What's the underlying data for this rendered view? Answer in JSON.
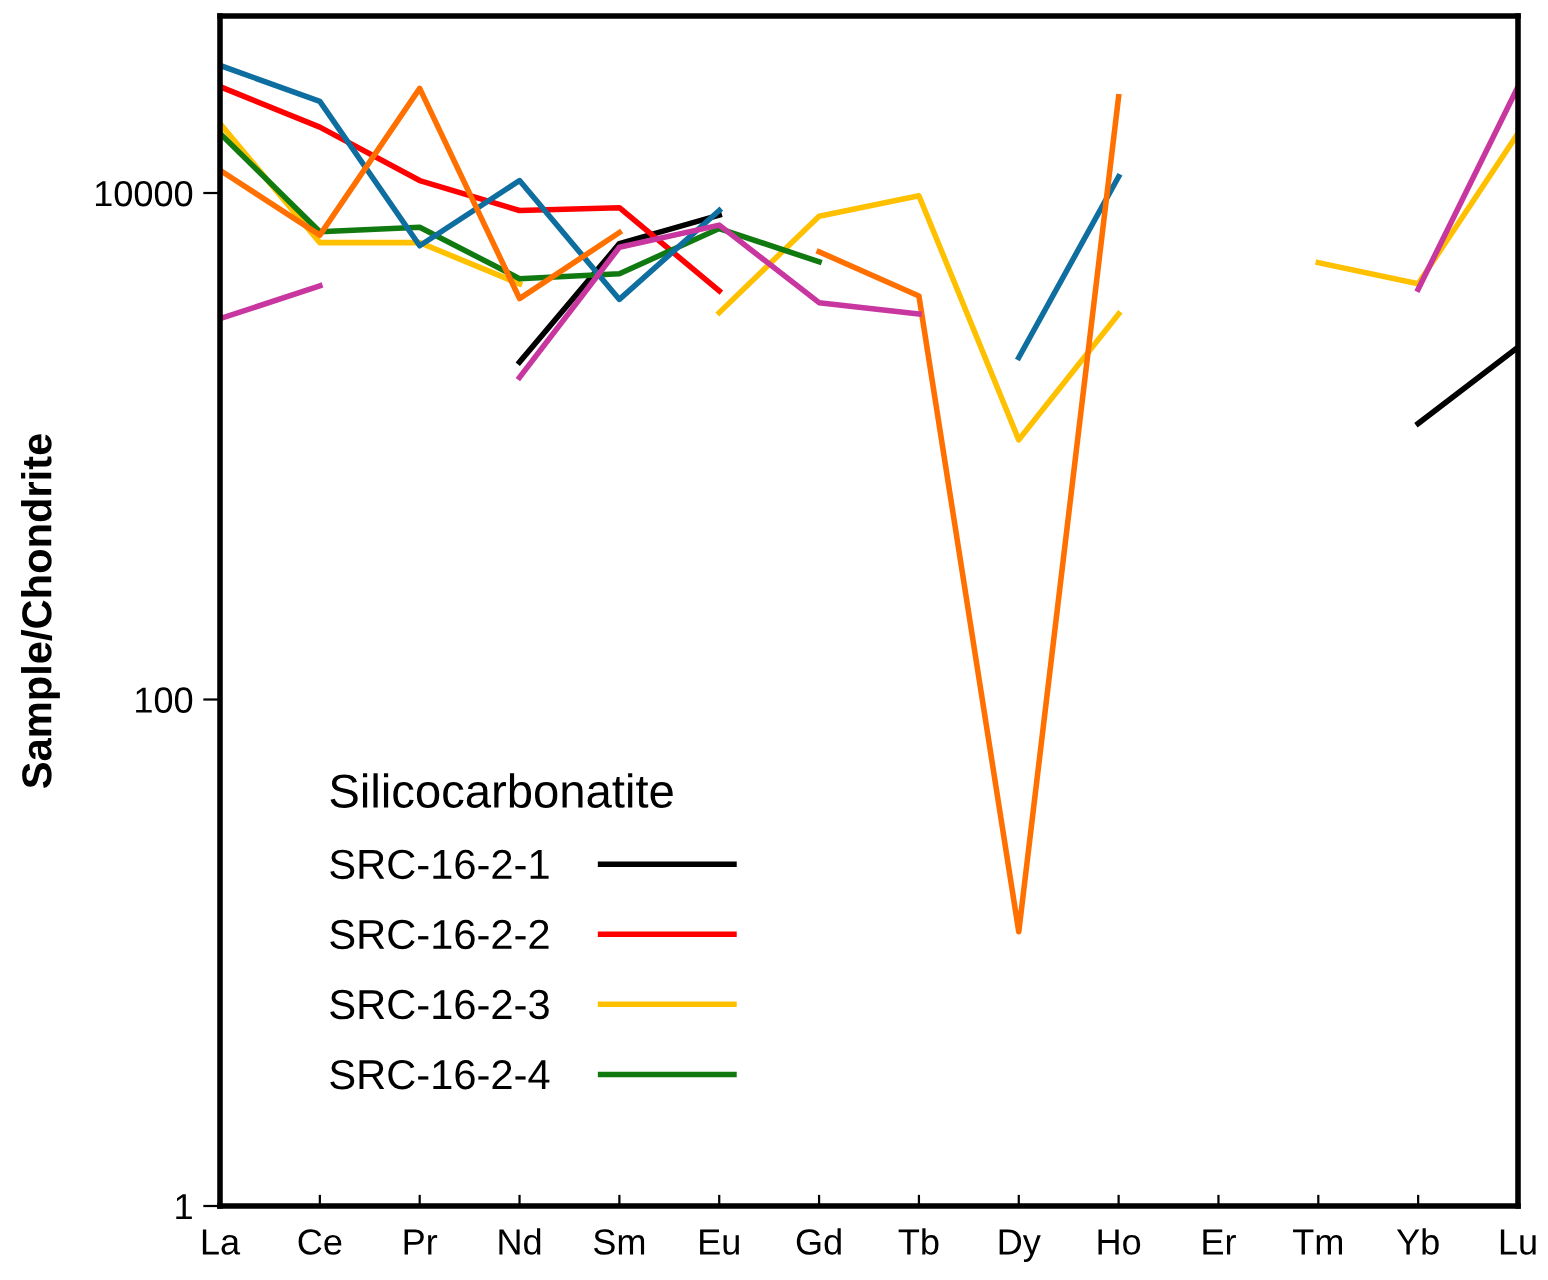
{
  "chart_data": {
    "type": "line",
    "ylabel": "Sample/Chondrite",
    "legend_title": "Silicocarbonatite",
    "legend": "bottom left",
    "log": true,
    "grid": false,
    "marker": "none",
    "line_style": "solid",
    "categories": [
      "La",
      "Ce",
      "Pr",
      "Nd",
      "Sm",
      "Eu",
      "Gd",
      "Tb",
      "Dy",
      "Ho",
      "Er",
      "Tm",
      "Yb",
      "Lu"
    ],
    "ylim": [
      1,
      50000
    ],
    "yticks": [
      1,
      100,
      10000
    ],
    "series": [
      {
        "name": "SRC-16-2-1",
        "color": "#000000",
        "values": [
          null,
          null,
          null,
          2150,
          6310,
          8180,
          null,
          null,
          null,
          null,
          null,
          null,
          1230,
          2460
        ]
      },
      {
        "name": "SRC-16-2-2",
        "color": "#ff0000",
        "values": [
          26300,
          18200,
          11200,
          8530,
          8750,
          4110,
          null,
          null,
          null,
          null,
          null,
          null,
          null,
          null
        ]
      },
      {
        "name": "SRC-16-2-3",
        "color": "#ffc000",
        "values": [
          18800,
          6370,
          6370,
          4380,
          null,
          3370,
          8100,
          9760,
          1060,
          3330,
          null,
          5310,
          4380,
          17200
        ]
      },
      {
        "name": "SRC-16-2-4",
        "color": "#107a10",
        "values": [
          17200,
          7030,
          7330,
          4590,
          4800,
          7240,
          5350,
          null,
          null,
          null,
          null,
          null,
          null,
          null
        ]
      },
      {
        "color": "#0f6ea0",
        "values": [
          31900,
          23000,
          6190,
          11200,
          3800,
          8530,
          null,
          null,
          2240,
          11600,
          null,
          null,
          null,
          null
        ]
      },
      {
        "color": "#ff7000",
        "values": [
          12300,
          6820,
          25900,
          3830,
          6980,
          null,
          5860,
          3920,
          12.1,
          24000,
          null,
          null,
          null,
          null
        ]
      },
      {
        "color": "#c8379f",
        "values": [
          3190,
          4300,
          null,
          1870,
          6110,
          7470,
          3690,
          3330,
          null,
          null,
          null,
          null,
          4170,
          26300
        ]
      }
    ]
  }
}
